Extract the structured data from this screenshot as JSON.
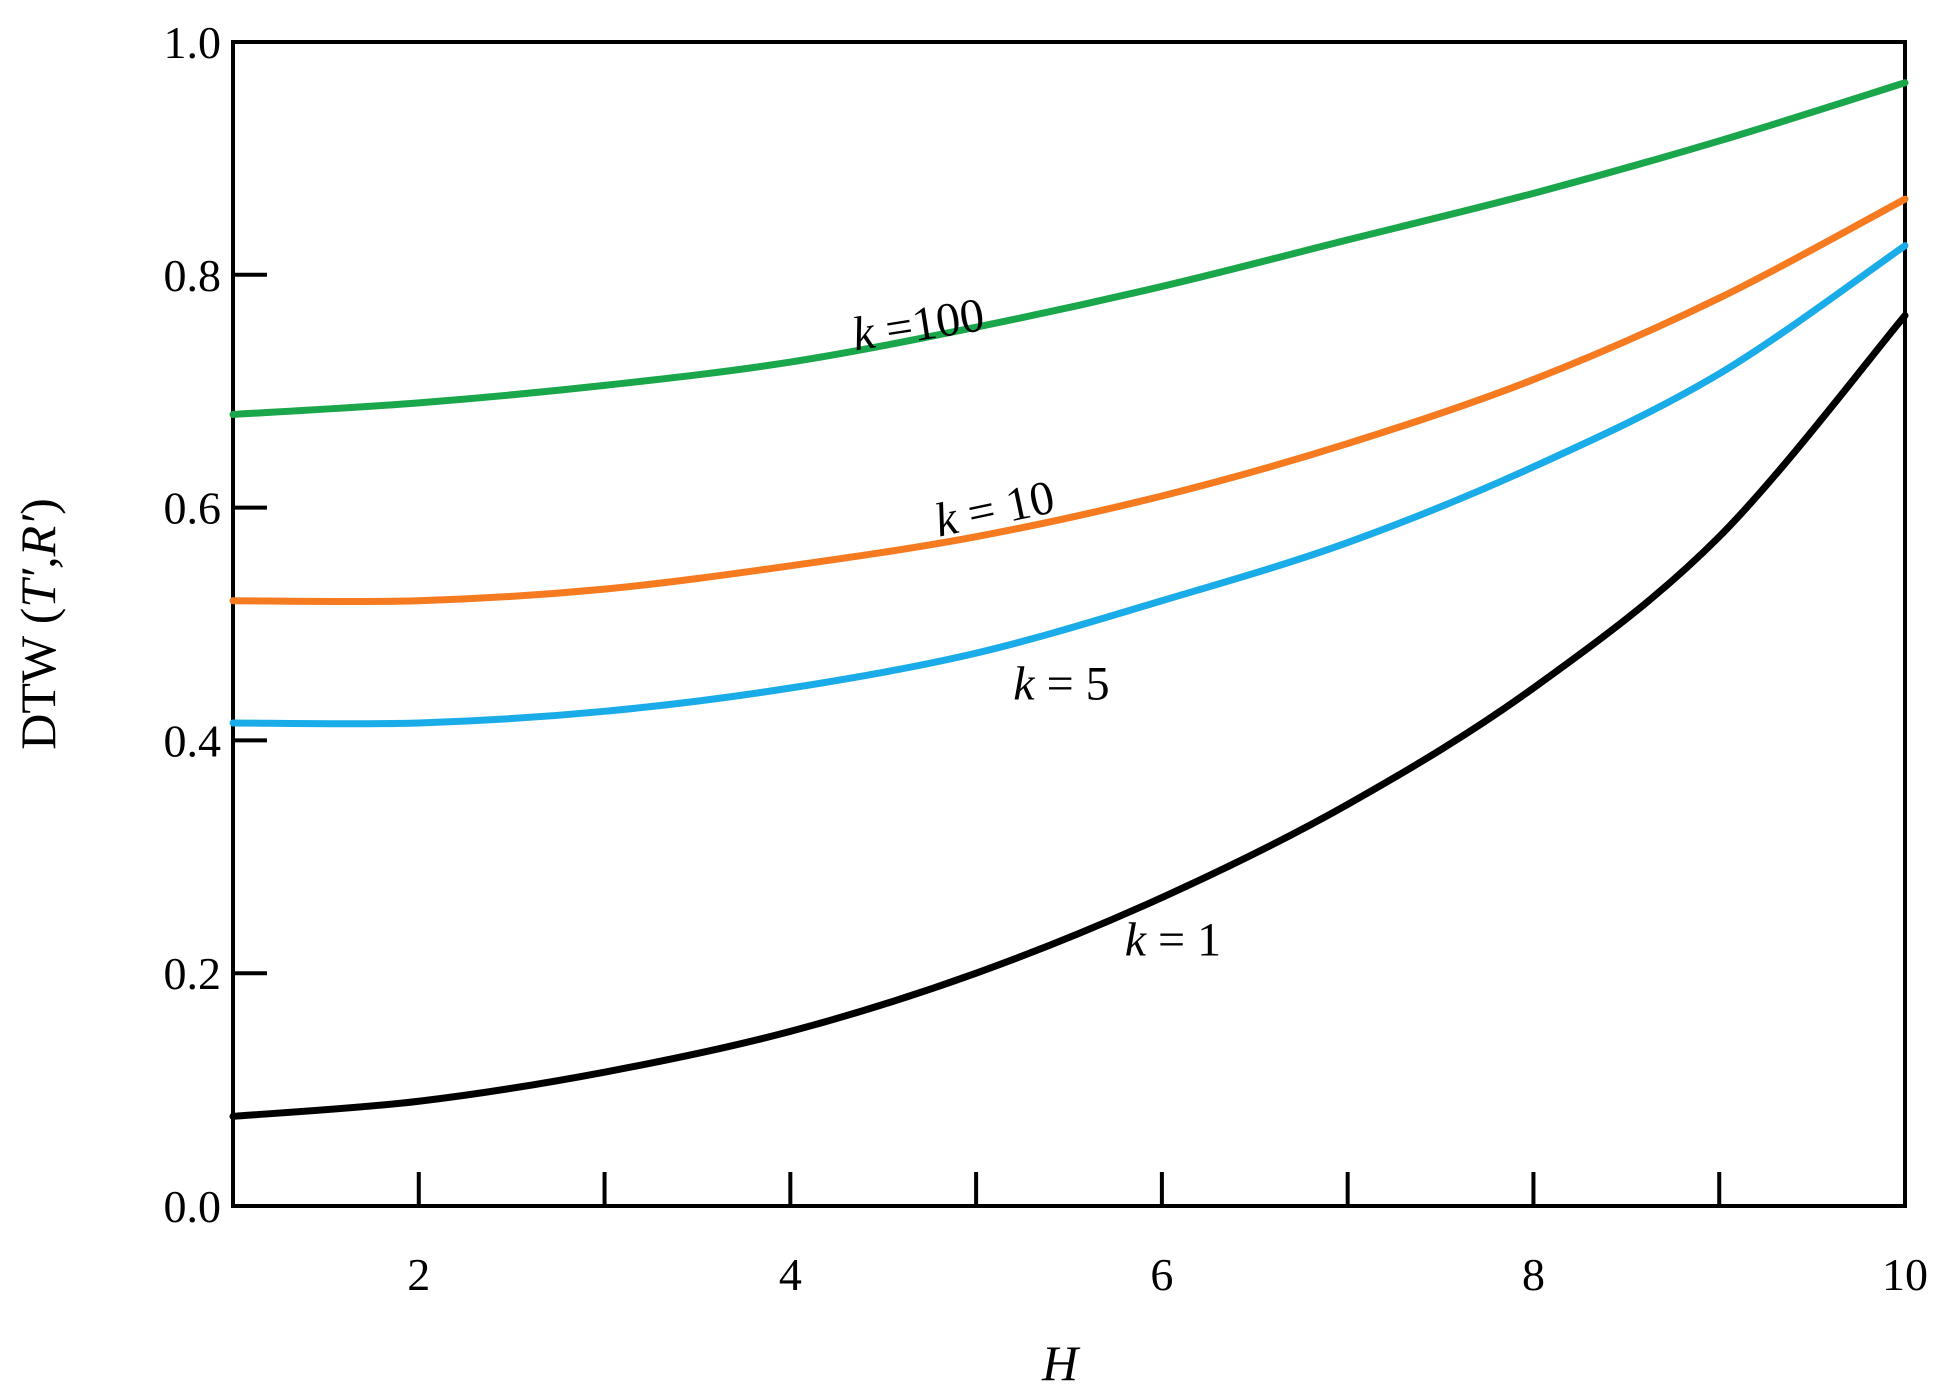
{
  "chart_data": {
    "type": "line",
    "xlabel": "H",
    "ylabel": "DTW (T′,R′)",
    "xlim": [
      1,
      10
    ],
    "ylim": [
      0.0,
      1.0
    ],
    "x_ticks_labeled": [
      2,
      4,
      6,
      8,
      10
    ],
    "x_ticks_labels": [
      "2",
      "4",
      "6",
      "8",
      "10"
    ],
    "x_ticks_minor": [
      2,
      3,
      4,
      5,
      6,
      7,
      8,
      9
    ],
    "y_ticks": [
      0.0,
      0.2,
      0.4,
      0.6,
      0.8,
      1.0
    ],
    "y_ticks_labels": [
      "0.0",
      "0.2",
      "0.4",
      "0.6",
      "0.8",
      "1.0"
    ],
    "grid": false,
    "legend": "none (inline labels)",
    "x": [
      1,
      2,
      3,
      4,
      5,
      6,
      7,
      8,
      9,
      10
    ],
    "series": [
      {
        "label": "k =100",
        "color": "#1aa64a",
        "values": [
          0.68,
          0.69,
          0.705,
          0.725,
          0.755,
          0.79,
          0.83,
          0.87,
          0.915,
          0.965
        ]
      },
      {
        "label": "k = 10",
        "color": "#f57a20",
        "values": [
          0.52,
          0.52,
          0.53,
          0.55,
          0.575,
          0.61,
          0.655,
          0.71,
          0.78,
          0.865
        ]
      },
      {
        "label": "k = 5",
        "color": "#1aace8",
        "values": [
          0.415,
          0.415,
          0.425,
          0.445,
          0.475,
          0.52,
          0.57,
          0.635,
          0.715,
          0.825
        ]
      },
      {
        "label": "k = 1",
        "color": "#000000",
        "values": [
          0.077,
          0.09,
          0.115,
          0.15,
          0.2,
          0.265,
          0.345,
          0.445,
          0.575,
          0.765
        ]
      }
    ]
  }
}
